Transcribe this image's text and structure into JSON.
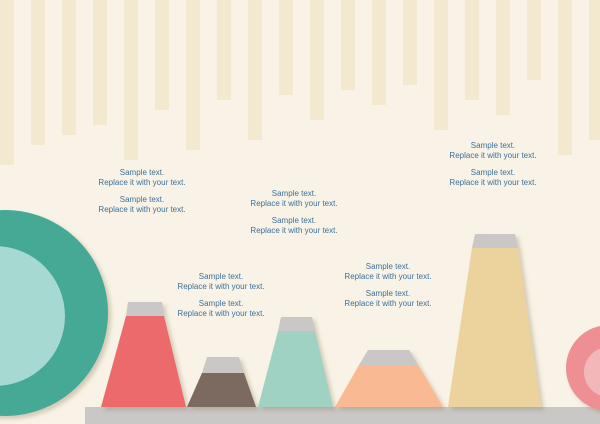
{
  "colors": {
    "background": "#f8f3e6",
    "stripes": "#f3e9cf",
    "caption_text": "#3f6f9b",
    "shelf": "#c9c8c6",
    "cap": "#c9c8c6"
  },
  "captions": [
    {
      "line1": "Sample text.",
      "line2": "Replace it with your text."
    },
    {
      "line1": "Sample text.",
      "line2": "Replace it with your text."
    }
  ],
  "shapes": [
    {
      "name": "red-trapezoid",
      "color": "#ec6b6c"
    },
    {
      "name": "brown-trapezoid",
      "color": "#7b6a60"
    },
    {
      "name": "mint-trapezoid",
      "color": "#9fd2c3"
    },
    {
      "name": "peach-trapezoid",
      "color": "#f8b993"
    },
    {
      "name": "sand-trapezoid",
      "color": "#ecd39e"
    }
  ],
  "circles": {
    "left_outer": "#44a996",
    "left_inner": "#a6d9d2",
    "right_outer": "#ee8f94",
    "right_inner": "#f4b7b9"
  }
}
